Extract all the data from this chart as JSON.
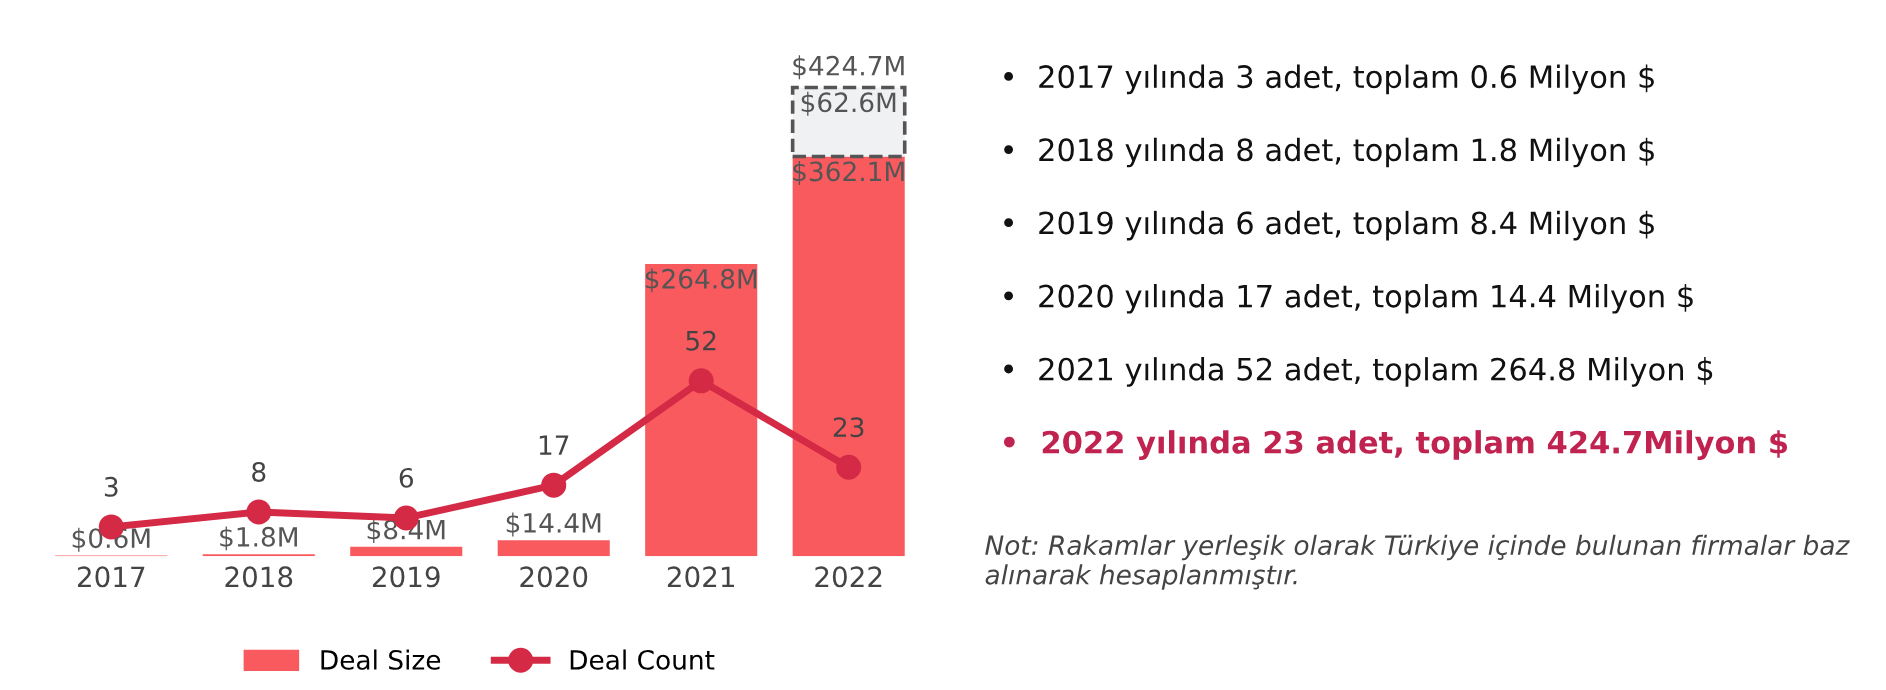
{
  "chart_data": {
    "type": "bar",
    "stacked": true,
    "categories": [
      "2017",
      "2018",
      "2019",
      "2020",
      "2021",
      "2022"
    ],
    "tick_labels": "x",
    "grid": false,
    "legend": "bottom",
    "series": [
      {
        "name": "Deal Size",
        "color": "#f95a5e",
        "values": [
          0.6,
          1.8,
          8.4,
          14.4,
          264.8,
          362.1
        ],
        "value_labels": [
          "$0.6M",
          "$1.8M",
          "$8.4M",
          "$14.4M",
          "$264.8M",
          "$362.1M"
        ]
      },
      {
        "color": "#f0f1f3",
        "line_style": "dashed",
        "values": [
          null,
          null,
          null,
          null,
          null,
          62.6
        ],
        "value_labels": [
          null,
          null,
          null,
          null,
          null,
          "$62.6M"
        ]
      },
      {
        "name": "Deal Count",
        "type": "line",
        "axis": "y2",
        "color": "#d42a45",
        "marker": "circle",
        "values": [
          3,
          8,
          6,
          17,
          52,
          23
        ],
        "value_labels": [
          "3",
          "8",
          "6",
          "17",
          "52",
          "23"
        ]
      }
    ],
    "totals": [
      null,
      null,
      null,
      null,
      null,
      "$424.7M"
    ],
    "annotations": [
      "•  2017 yılında 3 adet, toplam 0.6 Milyon $",
      "•  2018 yılında 8 adet, toplam 1.8 Milyon $",
      "•  2019 yılında 6 adet, toplam 8.4 Milyon $",
      "•  2020 yılında 17 adet, toplam 14.4 Milyon $",
      "•  2021 yılında 52 adet, toplam 264.8 Milyon $",
      "•  2022 yılında 23 adet, toplam 424.7Milyon $",
      "Not: Rakamlar yerleşik olarak Türkiye içinde bulunan firmalar baz alınarak hesaplanmıştır."
    ]
  }
}
